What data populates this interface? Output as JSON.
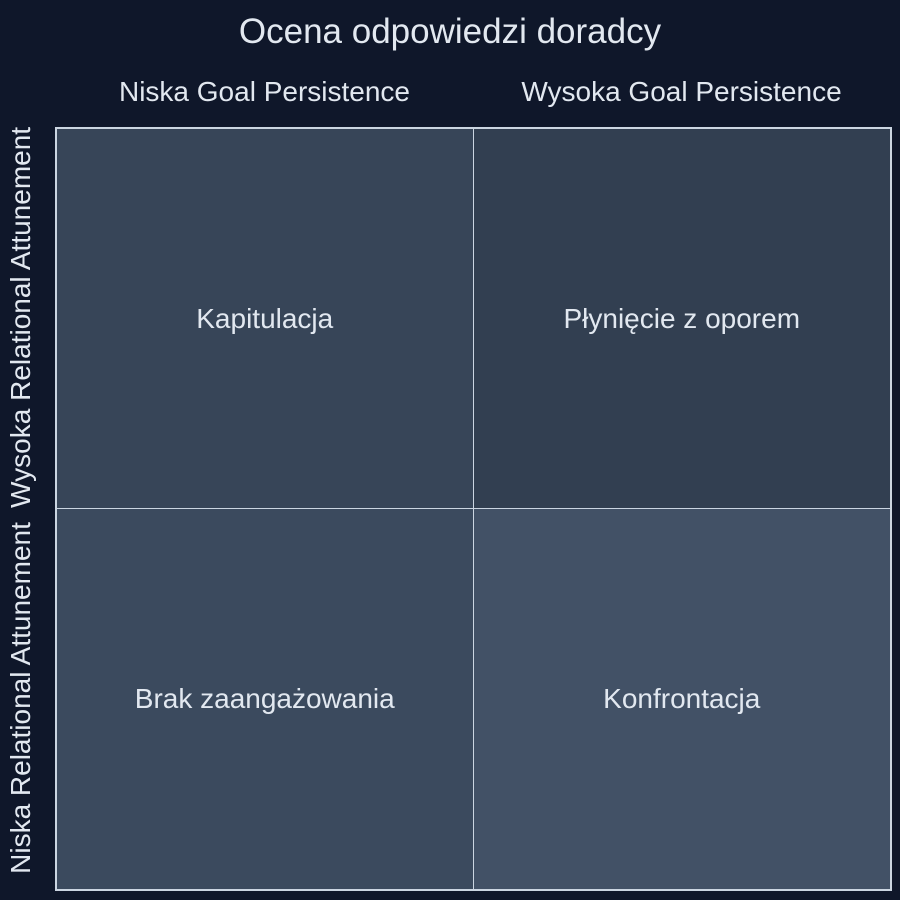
{
  "title": "Ocena odpowiedzi doradcy",
  "columns": {
    "low": "Niska Goal Persistence",
    "high": "Wysoka Goal Persistence"
  },
  "rows": {
    "high": "Wysoka Relational Attunement",
    "low": "Niska Relational Attunement"
  },
  "quadrants": {
    "top_left": "Kapitulacja",
    "top_right": "Płynięcie z oporem",
    "bottom_left": "Brak zaangażowania",
    "bottom_right": "Konfrontacja"
  },
  "colors": {
    "background": "#0f172a",
    "text": "#e2e8f0",
    "grid_line": "#cbd5e1",
    "top_left": "#374558",
    "top_right": "#323f51",
    "bottom_left": "#3b4a5e",
    "bottom_right": "#425166"
  }
}
